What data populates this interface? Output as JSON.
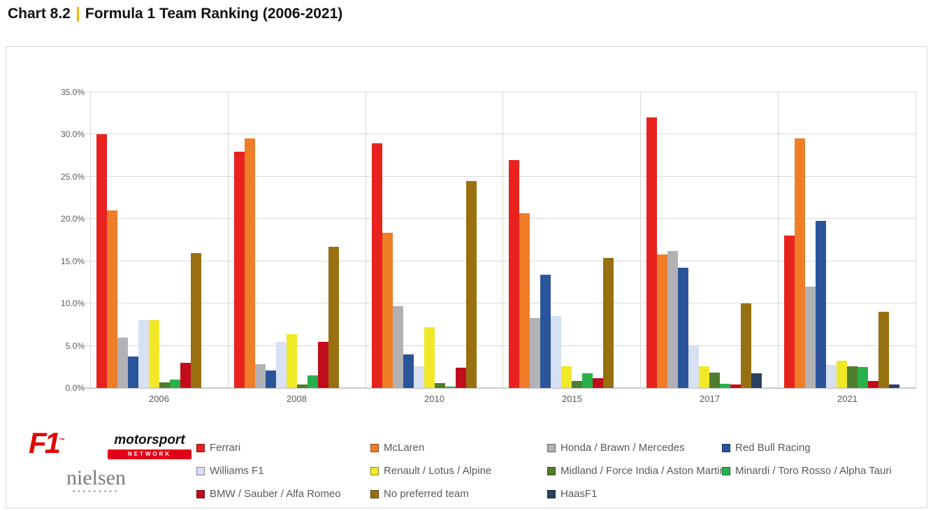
{
  "page": {
    "title_prefix": "Chart 8.2",
    "title_text": "Formula 1 Team Ranking (2006-2021)",
    "title_separator_color": "#f2b705"
  },
  "chart_data": {
    "type": "bar",
    "title": "Formula 1 Team Ranking (2006-2021)",
    "xlabel": "",
    "ylabel": "",
    "ylim": [
      0,
      35
    ],
    "y_tick_step": 5,
    "y_tick_labels": [
      "0.0%",
      "5.0%",
      "10.0%",
      "15.0%",
      "20.0%",
      "25.0%",
      "30.0%",
      "35.0%"
    ],
    "grid": "horizontal major gridlines + vertical category separators",
    "legend_position": "bottom",
    "categories": [
      "2006",
      "2008",
      "2010",
      "2015",
      "2017",
      "2021"
    ],
    "series": [
      {
        "name": "Ferrari",
        "color": "#e8221f",
        "values": [
          30.0,
          28.0,
          29.0,
          27.0,
          32.0,
          18.0
        ]
      },
      {
        "name": "McLaren",
        "color": "#f07d27",
        "values": [
          21.0,
          29.5,
          18.4,
          20.7,
          15.8,
          29.5
        ]
      },
      {
        "name": "Honda / Brawn / Mercedes",
        "color": "#b2b2b5",
        "values": [
          6.0,
          2.8,
          9.7,
          8.3,
          16.2,
          12.0
        ]
      },
      {
        "name": "Red Bull Racing",
        "color": "#2b549b",
        "values": [
          3.7,
          2.1,
          4.0,
          13.4,
          14.2,
          19.8
        ]
      },
      {
        "name": "Williams F1",
        "color": "#d8e1f3",
        "values": [
          8.0,
          5.5,
          2.6,
          8.5,
          5.0,
          2.7
        ]
      },
      {
        "name": "Renault / Lotus / Alpine",
        "color": "#f1e828",
        "values": [
          8.0,
          6.4,
          7.2,
          2.6,
          2.6,
          3.2
        ]
      },
      {
        "name": "Midland / Force India / Aston Martin",
        "color": "#507d2e",
        "values": [
          0.7,
          0.4,
          0.6,
          0.8,
          1.8,
          2.6
        ]
      },
      {
        "name": "Minardi / Toro Rosso / Alpha Tauri",
        "color": "#28b04c",
        "values": [
          1.0,
          1.5,
          0.2,
          1.7,
          0.5,
          2.5
        ]
      },
      {
        "name": "BMW / Sauber / Alfa Romeo",
        "color": "#c20d1c",
        "values": [
          3.0,
          5.5,
          2.4,
          1.2,
          0.4,
          0.8
        ]
      },
      {
        "name": "No preferred team",
        "color": "#987010",
        "values": [
          16.0,
          16.7,
          24.5,
          15.4,
          10.0,
          9.0
        ]
      },
      {
        "name": "HaasF1",
        "color": "#2b4162",
        "values": [
          0,
          0,
          0,
          0,
          1.7,
          0.4
        ]
      }
    ]
  },
  "logos": {
    "f1": "F1",
    "f1_tm": "™",
    "motorsport": "motorsport",
    "network": "NETWORK",
    "nielsen": "nielsen",
    "nielsen_dots": "•••••••••"
  },
  "style": {
    "grid_color": "#d9d9d9",
    "axis_color": "#bfbfbf",
    "axis_text_color": "#595959",
    "legend_text_color": "#595959",
    "panel_border_color": "#d6d6d6",
    "f1_logo_color": "#e10600",
    "motorsport_band_color": "#e3001b"
  }
}
